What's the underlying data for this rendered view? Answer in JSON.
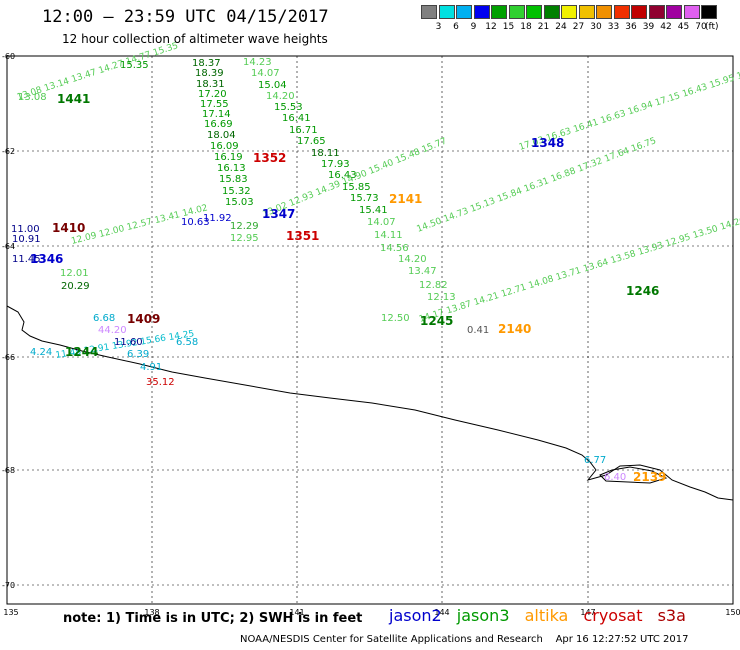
{
  "title": "12:00 – 23:59 UTC 04/15/2017",
  "subtitle": "12 hour collection of altimeter wave heights",
  "colorbar": {
    "colors": [
      "#808080",
      "#00e0e0",
      "#00b0f0",
      "#0000f0",
      "#00a000",
      "#30d030",
      "#00c000",
      "#008000",
      "#f0f000",
      "#f0c000",
      "#f09000",
      "#f03000",
      "#c00000",
      "#900030",
      "#a000a0",
      "#e060f0",
      "#000000"
    ],
    "ticks": [
      "3",
      "6",
      "9",
      "12",
      "15",
      "18",
      "21",
      "24",
      "27",
      "30",
      "33",
      "36",
      "39",
      "42",
      "45",
      "70"
    ],
    "unit": "(ft)"
  },
  "axes": {
    "x_ticks": [
      "135",
      "138",
      "141",
      "144",
      "147",
      "150"
    ],
    "y_ticks": [
      "-60",
      "-62",
      "-64",
      "-66",
      "-68",
      "-70"
    ]
  },
  "satellite_colors": {
    "jason2": "#0000cc",
    "jason3": "#009900",
    "altika": "#ff9900",
    "cryosat": "#cc0000",
    "s3a": "#aa0000"
  },
  "pass_times": [
    {
      "label": "1441",
      "color": "#007700"
    },
    {
      "label": "1352",
      "color": "#cc0000"
    },
    {
      "label": "1348",
      "color": "#0000cc"
    },
    {
      "label": "2141",
      "color": "#ff9900"
    },
    {
      "label": "1347",
      "color": "#0000cc"
    },
    {
      "label": "1351",
      "color": "#cc0000"
    },
    {
      "label": "1410",
      "color": "#770000"
    },
    {
      "label": "1346",
      "color": "#0000cc"
    },
    {
      "label": "1409",
      "color": "#770000"
    },
    {
      "label": "1244",
      "color": "#007700"
    },
    {
      "label": "1246",
      "color": "#007700"
    },
    {
      "label": "1245",
      "color": "#007700"
    },
    {
      "label": "2140",
      "color": "#ff9900"
    },
    {
      "label": "2139",
      "color": "#ff9900"
    }
  ],
  "wave_values": [
    {
      "v": "18.37",
      "c": "#006600"
    },
    {
      "v": "18.39",
      "c": "#006600"
    },
    {
      "v": "18.31",
      "c": "#006600"
    },
    {
      "v": "17.20",
      "c": "#009900"
    },
    {
      "v": "17.55",
      "c": "#009900"
    },
    {
      "v": "17.14",
      "c": "#009900"
    },
    {
      "v": "16.69",
      "c": "#009900"
    },
    {
      "v": "18.04",
      "c": "#006600"
    },
    {
      "v": "16.09",
      "c": "#009900"
    },
    {
      "v": "16.19",
      "c": "#009900"
    },
    {
      "v": "16.13",
      "c": "#009900"
    },
    {
      "v": "15.83",
      "c": "#009900"
    },
    {
      "v": "15.32",
      "c": "#009900"
    },
    {
      "v": "15.03",
      "c": "#009900"
    },
    {
      "v": "12.29",
      "c": "#33aa33"
    },
    {
      "v": "12.95",
      "c": "#55cc55"
    },
    {
      "v": "14.23",
      "c": "#55cc55"
    },
    {
      "v": "14.07",
      "c": "#55cc55"
    },
    {
      "v": "15.04",
      "c": "#009900"
    },
    {
      "v": "14.20",
      "c": "#55cc55"
    },
    {
      "v": "15.53",
      "c": "#009900"
    },
    {
      "v": "16.41",
      "c": "#009900"
    },
    {
      "v": "16.71",
      "c": "#009900"
    },
    {
      "v": "17.65",
      "c": "#009900"
    },
    {
      "v": "18.11",
      "c": "#006600"
    },
    {
      "v": "17.93",
      "c": "#009900"
    },
    {
      "v": "16.43",
      "c": "#009900"
    },
    {
      "v": "15.85",
      "c": "#009900"
    },
    {
      "v": "15.73",
      "c": "#009900"
    },
    {
      "v": "15.41",
      "c": "#009900"
    },
    {
      "v": "14.07",
      "c": "#55cc55"
    },
    {
      "v": "14.11",
      "c": "#55cc55"
    },
    {
      "v": "14.56",
      "c": "#55cc55"
    },
    {
      "v": "14.20",
      "c": "#55cc55"
    },
    {
      "v": "13.47",
      "c": "#55cc55"
    },
    {
      "v": "12.82",
      "c": "#55cc55"
    },
    {
      "v": "12.13",
      "c": "#55cc55"
    },
    {
      "v": "12.50",
      "c": "#55cc55"
    },
    {
      "v": "0.41",
      "c": "#555555"
    },
    {
      "v": "15.35",
      "c": "#009900"
    },
    {
      "v": "13.08",
      "c": "#55cc55"
    },
    {
      "v": "11.00",
      "c": "#000088"
    },
    {
      "v": "10.91",
      "c": "#000088"
    },
    {
      "v": "11.45",
      "c": "#000088"
    },
    {
      "v": "12.01",
      "c": "#55cc55"
    },
    {
      "v": "20.29",
      "c": "#006600"
    },
    {
      "v": "10.63",
      "c": "#0000cc"
    },
    {
      "v": "11.92",
      "c": "#0000cc"
    },
    {
      "v": "6.68",
      "c": "#00aacc"
    },
    {
      "v": "44.20",
      "c": "#cc88ff"
    },
    {
      "v": "11.60",
      "c": "#000088"
    },
    {
      "v": "4.24",
      "c": "#00aacc"
    },
    {
      "v": "6.58",
      "c": "#00aacc"
    },
    {
      "v": "4.91",
      "c": "#00aacc"
    },
    {
      "v": "6.39",
      "c": "#00aacc"
    },
    {
      "v": "35.12",
      "c": "#cc0000"
    },
    {
      "v": "6.77",
      "c": "#00aacc"
    },
    {
      "v": "6.40",
      "c": "#cc88ff"
    }
  ],
  "footer": {
    "note": "note:  1) Time is in UTC;  2) SWH is in feet",
    "legend": [
      "jason2",
      "jason3",
      "altika",
      "cryosat",
      "s3a"
    ],
    "credit": "NOAA/NESDIS Center for Satellite Applications and Research    Apr 16 12:27:52 UTC 2017"
  }
}
